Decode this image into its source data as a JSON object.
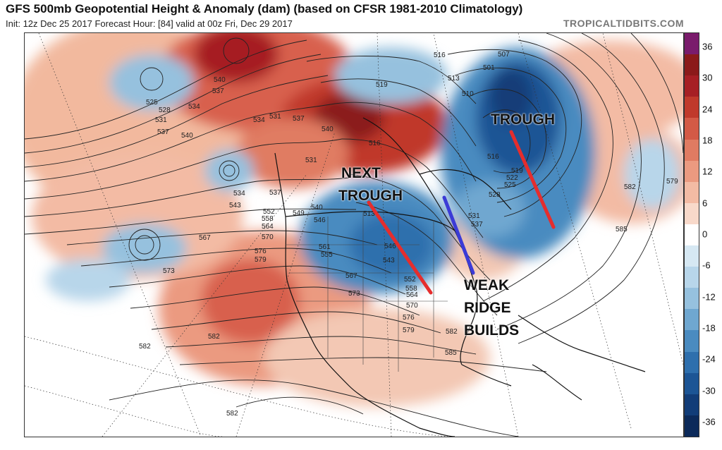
{
  "header": {
    "title": "GFS 500mb Geopotential Height & Anomaly (dam) (based on CFSR 1981-2010 Climatology)",
    "subtitle": "Init: 12z Dec 25 2017   Forecast Hour: [84]   valid at 00z Fri, Dec 29 2017",
    "brand": "TROPICALTIDBITS.COM"
  },
  "annotations": {
    "trough_east": "TROUGH",
    "next_trough_line1": "NEXT",
    "next_trough_line2": "TROUGH",
    "weak_ridge_line1": "WEAK",
    "weak_ridge_line2": "RIDGE",
    "weak_ridge_line3": "BUILDS"
  },
  "colorbar": {
    "labels": [
      "36",
      "30",
      "24",
      "18",
      "12",
      "6",
      "0",
      "-6",
      "-12",
      "-18",
      "-24",
      "-30",
      "-36"
    ],
    "colors": [
      "#7a1b6c",
      "#8b1a1a",
      "#a61f24",
      "#c0392b",
      "#d35a46",
      "#e07b62",
      "#eb9a80",
      "#f3bba4",
      "#f8d9ca",
      "#ffffff",
      "#d6e8f3",
      "#b8d6ea",
      "#96c1de",
      "#6fa7d0",
      "#4a8bc0",
      "#2e6fad",
      "#1c5595",
      "#123d78",
      "#0c2a5a"
    ]
  },
  "contour_labels": [
    "525",
    "528",
    "531",
    "537",
    "540",
    "534",
    "540",
    "537",
    "534",
    "531",
    "537",
    "540",
    "531",
    "534",
    "543",
    "537",
    "552",
    "558",
    "564",
    "567",
    "570",
    "576",
    "579",
    "573",
    "549",
    "546",
    "540",
    "561",
    "555",
    "567",
    "573",
    "570",
    "576",
    "579",
    "582",
    "582",
    "582",
    "582",
    "585",
    "585",
    "579",
    "582",
    "516",
    "513",
    "510",
    "519",
    "516",
    "507",
    "501",
    "516",
    "519",
    "522",
    "525",
    "528",
    "531",
    "537",
    "552",
    "558",
    "564",
    "546",
    "543",
    "513"
  ],
  "colors": {
    "trough_axis": "#e52d2d",
    "ridge_axis": "#3b3bd6"
  }
}
